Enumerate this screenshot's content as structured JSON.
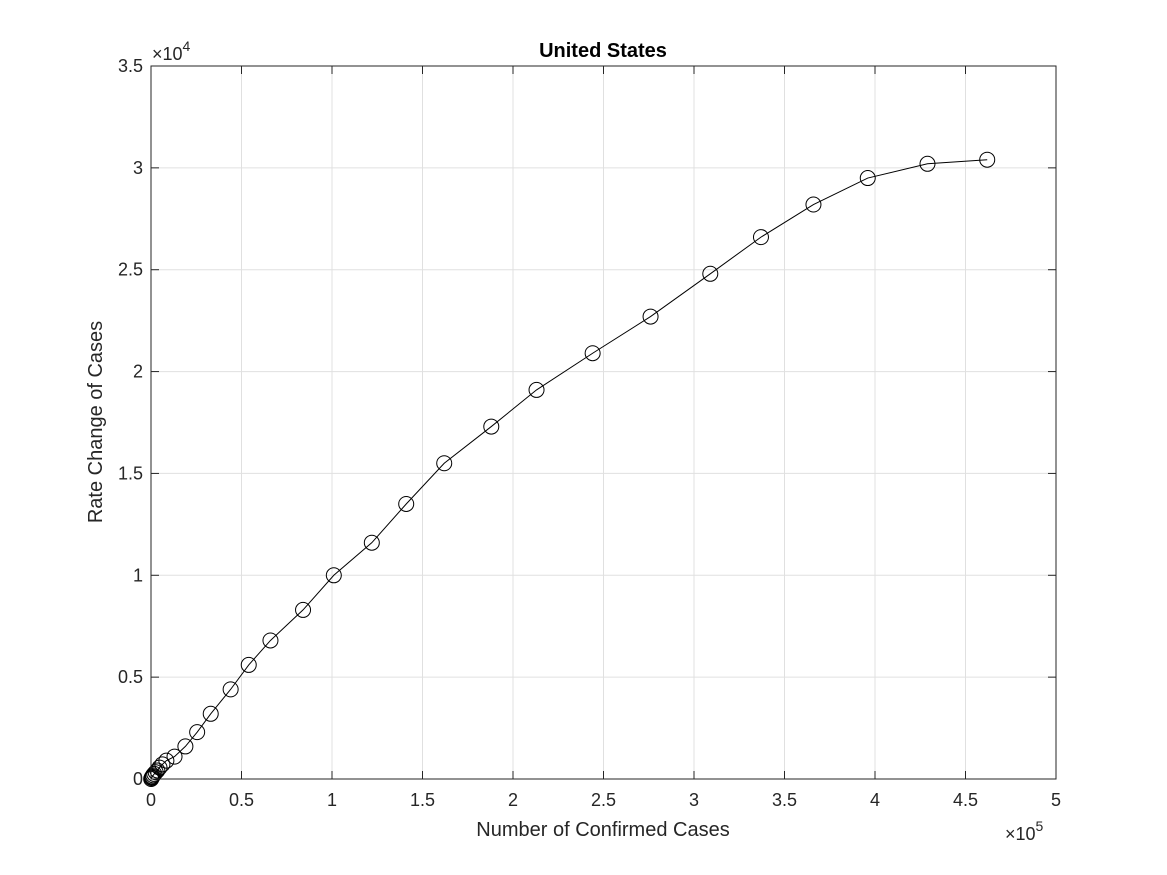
{
  "chart_data": {
    "type": "line",
    "title": "United States",
    "xlabel": "Number of Confirmed Cases",
    "ylabel": "Rate Change of Cases",
    "x_multiplier_label": "×10",
    "x_exponent": "5",
    "y_multiplier_label": "×10",
    "y_exponent": "4",
    "xlim": [
      0,
      500000
    ],
    "ylim": [
      0,
      35000
    ],
    "x_ticks": [
      0,
      50000,
      100000,
      150000,
      200000,
      250000,
      300000,
      350000,
      400000,
      450000,
      500000
    ],
    "x_tick_labels": [
      "0",
      "0.5",
      "1",
      "1.5",
      "2",
      "2.5",
      "3",
      "3.5",
      "4",
      "4.5",
      "5"
    ],
    "y_ticks": [
      0,
      5000,
      10000,
      15000,
      20000,
      25000,
      30000,
      35000
    ],
    "y_tick_labels": [
      "0",
      "0.5",
      "1",
      "1.5",
      "2",
      "2.5",
      "3",
      "3.5"
    ],
    "grid": true,
    "marker": "circle",
    "line_color": "#000000",
    "grid_color": "#e0e0e0",
    "series": [
      {
        "x": [
          100,
          300,
          500,
          800,
          1200,
          1800,
          2600,
          3500,
          4700,
          6300,
          8500,
          13000,
          19000,
          25500,
          33000,
          44000,
          54000,
          66000,
          84000,
          101000,
          122000,
          141000,
          162000,
          188000,
          213000,
          244000,
          276000,
          309000,
          337000,
          366000,
          396000,
          429000,
          462000
        ],
        "y": [
          0,
          50,
          80,
          120,
          180,
          250,
          330,
          420,
          560,
          720,
          900,
          1100,
          1600,
          2300,
          3200,
          4400,
          5600,
          6800,
          8300,
          10000,
          11600,
          13500,
          15500,
          17300,
          19100,
          20900,
          22700,
          24800,
          26600,
          28200,
          29500,
          30200,
          30400
        ]
      }
    ]
  }
}
